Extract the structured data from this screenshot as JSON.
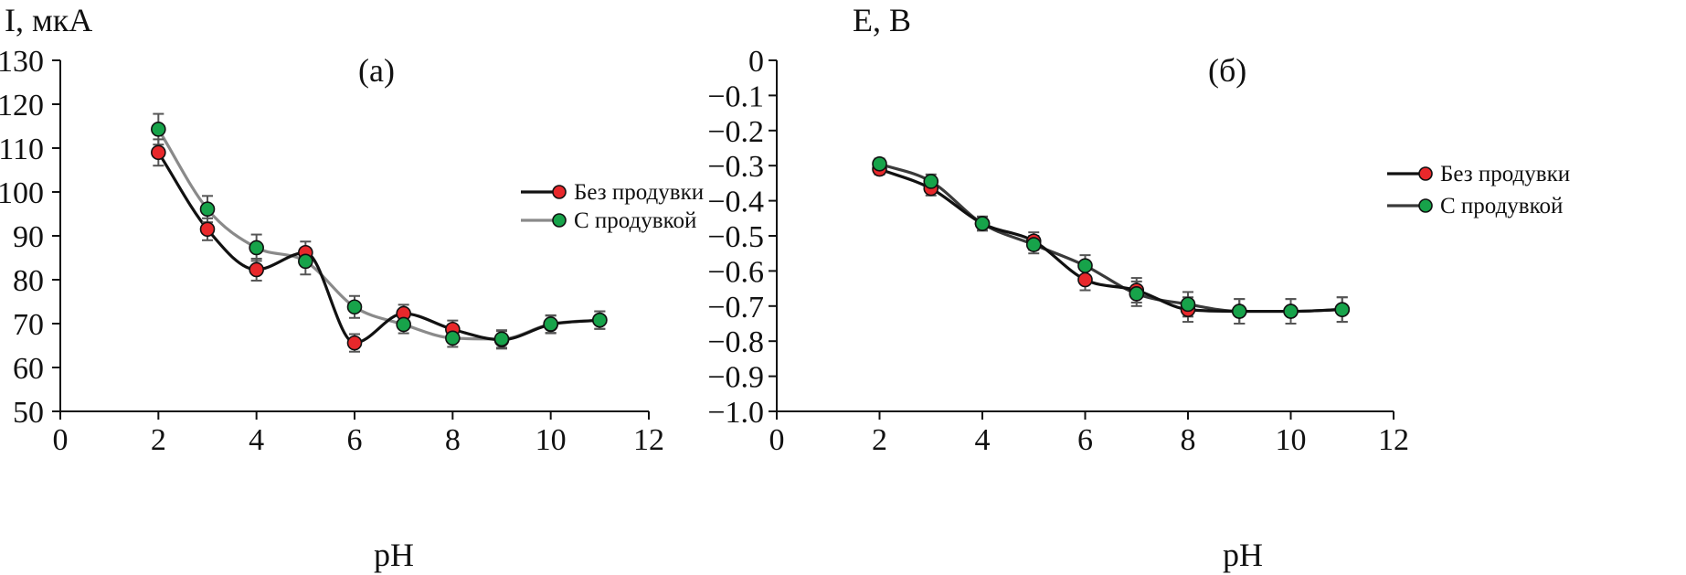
{
  "figure": {
    "panels": [
      "a",
      "b"
    ]
  },
  "chart_data": [
    {
      "type": "line",
      "panel_label": "(а)",
      "ylabel": "I, мкА",
      "xlabel": "pH",
      "xlim": [
        0,
        12
      ],
      "ylim": [
        50,
        130
      ],
      "x_ticks": [
        0,
        2,
        4,
        6,
        8,
        10,
        12
      ],
      "y_ticks": [
        50,
        60,
        70,
        80,
        90,
        100,
        110,
        120,
        130
      ],
      "x_tick_labels": [
        "0",
        "2",
        "4",
        "6",
        "8",
        "10",
        "12"
      ],
      "y_tick_labels": [
        "50",
        "60",
        "70",
        "80",
        "90",
        "100",
        "110",
        "120",
        "130"
      ],
      "grid": false,
      "legend_placement": "right",
      "series": [
        {
          "name": "Без продувки",
          "line_color": "#111111",
          "marker_color": "#e8282b",
          "x": [
            2,
            3,
            4,
            5,
            6,
            7,
            8,
            9,
            10,
            11
          ],
          "y": [
            109,
            91.5,
            82.3,
            86.2,
            65.6,
            72.3,
            68.7,
            66.3,
            69.8,
            70.8
          ],
          "err": [
            3,
            2.5,
            2.5,
            2.5,
            2,
            2,
            2,
            2,
            2,
            2
          ]
        },
        {
          "name": "С продувкой",
          "line_color": "#8a8a8a",
          "marker_color": "#17a34a",
          "x": [
            2,
            3,
            4,
            5,
            6,
            7,
            8,
            9,
            10,
            11
          ],
          "y": [
            114.3,
            96.1,
            87.3,
            84.2,
            73.8,
            69.8,
            66.7,
            66.5,
            69.9,
            70.8
          ],
          "err": [
            3.5,
            3,
            3,
            3,
            2.5,
            2,
            2,
            2,
            2,
            2
          ]
        }
      ]
    },
    {
      "type": "line",
      "panel_label": "(б)",
      "ylabel": "E, В",
      "xlabel": "pH",
      "xlim": [
        0,
        12
      ],
      "ylim": [
        -1.0,
        0
      ],
      "x_ticks": [
        0,
        2,
        4,
        6,
        8,
        10,
        12
      ],
      "y_ticks": [
        0,
        -0.1,
        -0.2,
        -0.3,
        -0.4,
        -0.5,
        -0.6,
        -0.7,
        -0.8,
        -0.9,
        -1.0
      ],
      "x_tick_labels": [
        "0",
        "2",
        "4",
        "6",
        "8",
        "10",
        "12"
      ],
      "y_tick_labels": [
        "0",
        "−0.1",
        "−0.2",
        "−0.3",
        "−0.4",
        "−0.5",
        "−0.6",
        "−0.7",
        "−0.8",
        "−0.9",
        "−1.0"
      ],
      "grid": false,
      "legend_placement": "top-right",
      "series": [
        {
          "name": "Без продувки",
          "line_color": "#111111",
          "marker_color": "#e8282b",
          "x": [
            2,
            3,
            4,
            5,
            6,
            7,
            8,
            9,
            10,
            11
          ],
          "y": [
            -0.31,
            -0.365,
            -0.465,
            -0.515,
            -0.625,
            -0.655,
            -0.71,
            -0.715,
            -0.715,
            -0.71
          ],
          "err": [
            0.015,
            0.02,
            0.02,
            0.025,
            0.03,
            0.035,
            0.035,
            0.035,
            0.035,
            0.035
          ]
        },
        {
          "name": "С продувкой",
          "line_color": "#3a3a3a",
          "marker_color": "#17a34a",
          "x": [
            2,
            3,
            4,
            5,
            6,
            7,
            8,
            9,
            10,
            11
          ],
          "y": [
            -0.295,
            -0.345,
            -0.465,
            -0.525,
            -0.585,
            -0.665,
            -0.695,
            -0.715,
            -0.715,
            -0.71
          ],
          "err": [
            0.015,
            0.02,
            0.02,
            0.025,
            0.03,
            0.035,
            0.035,
            0.035,
            0.035,
            0.035
          ]
        }
      ]
    }
  ]
}
